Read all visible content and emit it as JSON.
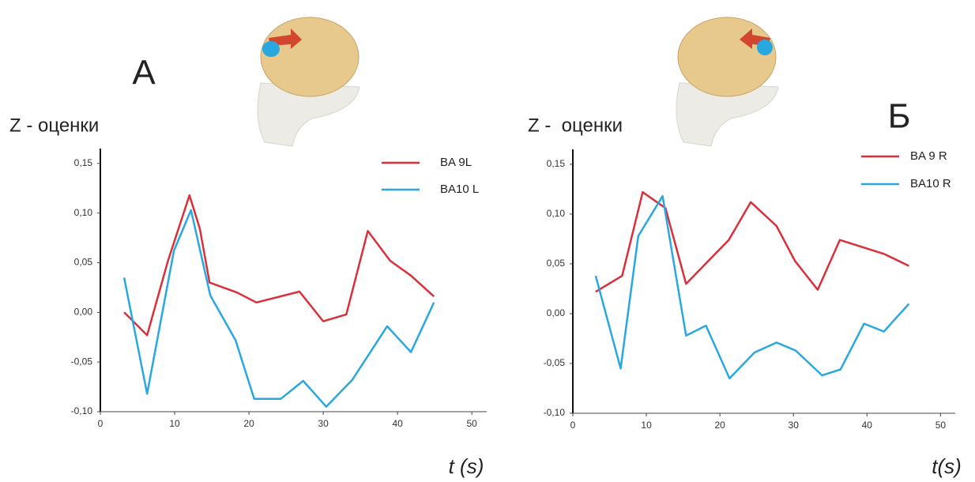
{
  "chart_data": [
    {
      "type": "line",
      "title": "А",
      "ylabel": "Z - оценки",
      "xlabel": "t (s)",
      "xlim": [
        0,
        52
      ],
      "xticks": [
        0,
        10,
        20,
        30,
        40,
        50
      ],
      "ylim": [
        -0.1,
        0.165
      ],
      "yticks": [
        {
          "value": -0.1,
          "label": "-0,10"
        },
        {
          "value": -0.05,
          "label": "-0,05"
        },
        {
          "value": 0,
          "label": "0,00"
        },
        {
          "value": 0.05,
          "label": "0,05"
        },
        {
          "value": 0.1,
          "label": "0,10"
        },
        {
          "value": 0.15,
          "label": "0,15"
        }
      ],
      "legend": "upper right",
      "series": [
        {
          "name": "BA 9L",
          "color": "#d9303a",
          "x": [
            3.2,
            6.3,
            9.1,
            12,
            13.4,
            14.7,
            18.4,
            21,
            26.8,
            30,
            33.1,
            36,
            39,
            41.8,
            44.9
          ],
          "values": [
            0,
            -0.023,
            0.052,
            0.118,
            0.084,
            0.03,
            0.02,
            0.01,
            0.021,
            -0.009,
            -0.002,
            0.082,
            0.052,
            0.037,
            0.016
          ]
        },
        {
          "name": "BA10 L",
          "color": "#29a8e0",
          "x": [
            3.2,
            6.3,
            9.9,
            12.2,
            14.8,
            18.2,
            20.7,
            24.3,
            27.3,
            30.4,
            33.9,
            38.6,
            41.8,
            44.9
          ],
          "values": [
            0.035,
            -0.082,
            0.062,
            0.103,
            0.017,
            -0.028,
            -0.087,
            -0.087,
            -0.069,
            -0.095,
            -0.068,
            -0.014,
            -0.04,
            0.01
          ]
        }
      ]
    },
    {
      "type": "line",
      "title": "Б",
      "ylabel": "Z -  оценки",
      "xlabel": "t(s)",
      "xlim": [
        0,
        52
      ],
      "xticks": [
        0,
        10,
        20,
        30,
        40,
        50
      ],
      "ylim": [
        -0.1,
        0.165
      ],
      "yticks": [
        {
          "value": -0.1,
          "label": "-0,10"
        },
        {
          "value": -0.05,
          "label": "-0,05"
        },
        {
          "value": 0,
          "label": "0,00"
        },
        {
          "value": 0.05,
          "label": "0,05"
        },
        {
          "value": 0.1,
          "label": "0,10"
        },
        {
          "value": 0.15,
          "label": "0,15"
        }
      ],
      "legend": "upper right",
      "series": [
        {
          "name": "BA 9 R",
          "color": "#d9303a",
          "x": [
            3.1,
            6.7,
            9.5,
            12.6,
            15.4,
            21.2,
            24.2,
            27.7,
            30.2,
            33.3,
            36.3,
            42.3,
            45.7
          ],
          "values": [
            0.022,
            0.038,
            0.122,
            0.106,
            0.03,
            0.074,
            0.112,
            0.088,
            0.053,
            0.024,
            0.074,
            0.06,
            0.048
          ]
        },
        {
          "name": "BA10 R",
          "color": "#29a8e0",
          "x": [
            3.1,
            6.5,
            8.9,
            12.2,
            15.4,
            18.1,
            21.3,
            24.7,
            27.7,
            30.3,
            33.9,
            36.4,
            39.6,
            42.3,
            45.7
          ],
          "values": [
            0.038,
            -0.055,
            0.078,
            0.118,
            -0.022,
            -0.012,
            -0.065,
            -0.039,
            -0.029,
            -0.037,
            -0.062,
            -0.056,
            -0.01,
            -0.018,
            0.01
          ]
        }
      ]
    }
  ]
}
